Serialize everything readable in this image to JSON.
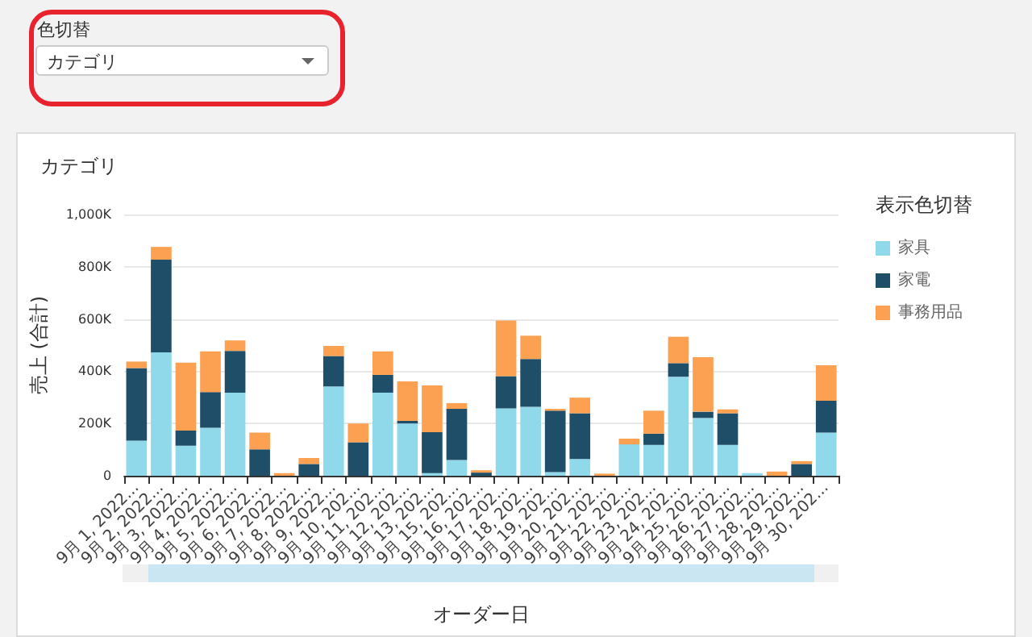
{
  "chart_data": {
    "type": "bar",
    "title": "カテゴリ",
    "xlabel": "オーダー日",
    "ylabel": "売上 (合計)",
    "legend_title": "表示色切替",
    "annotations": [
      "色切替",
      "カテゴリ"
    ],
    "categories": [
      "9月 1, 2022...",
      "9月 2, 2022...",
      "9月 3, 2022...",
      "9月 4, 2022...",
      "9月 5, 2022...",
      "9月 6, 2022...",
      "9月 7, 2022...",
      "9月 8, 2022...",
      "9月 9, 2022...",
      "9月 10, 202...",
      "9月 11, 202...",
      "9月 12, 202...",
      "9月 13, 202...",
      "9月 15, 202...",
      "9月 16, 202...",
      "9月 17, 202...",
      "9月 18, 202...",
      "9月 19, 202...",
      "9月 20, 202...",
      "9月 21, 202...",
      "9月 22, 202...",
      "9月 23, 202...",
      "9月 24, 202...",
      "9月 25, 202...",
      "9月 26, 202...",
      "9月 27, 202...",
      "9月 28, 202...",
      "9月 29, 202...",
      "9月 30, 202..."
    ],
    "stacked": true,
    "series": [
      {
        "name": "家具",
        "color": "#8fd9ea",
        "values": [
          134000,
          472000,
          115000,
          184000,
          318000,
          0,
          0,
          0,
          342000,
          0,
          318000,
          200000,
          10000,
          60000,
          0,
          258000,
          264000,
          14000,
          64000,
          0,
          120000,
          118000,
          379000,
          221000,
          118000,
          10000,
          0,
          0,
          165000
        ]
      },
      {
        "name": "家電",
        "color": "#1f4e68",
        "values": [
          278000,
          355000,
          58000,
          136000,
          160000,
          101000,
          0,
          45000,
          116000,
          128000,
          68000,
          10000,
          157000,
          196000,
          12000,
          123000,
          183000,
          235000,
          175000,
          0,
          0,
          43000,
          52000,
          24000,
          121000,
          0,
          0,
          45000,
          122000
        ]
      },
      {
        "name": "事務用品",
        "color": "#fba151",
        "values": [
          25000,
          49000,
          260000,
          156000,
          40000,
          64000,
          10000,
          23000,
          39000,
          72000,
          90000,
          151000,
          179000,
          22000,
          9000,
          213000,
          89000,
          7000,
          60000,
          8000,
          22000,
          88000,
          101000,
          209000,
          15000,
          0,
          16000,
          11000,
          136000
        ]
      }
    ],
    "ylim": [
      0,
      1000000
    ],
    "yticks": [
      {
        "value": 0,
        "label": "0"
      },
      {
        "value": 200000,
        "label": "200K"
      },
      {
        "value": 400000,
        "label": "400K"
      },
      {
        "value": 600000,
        "label": "600K"
      },
      {
        "value": 800000,
        "label": "800K"
      },
      {
        "value": 1000000,
        "label": "1,000K"
      }
    ],
    "grid": "y",
    "legend": "right"
  }
}
